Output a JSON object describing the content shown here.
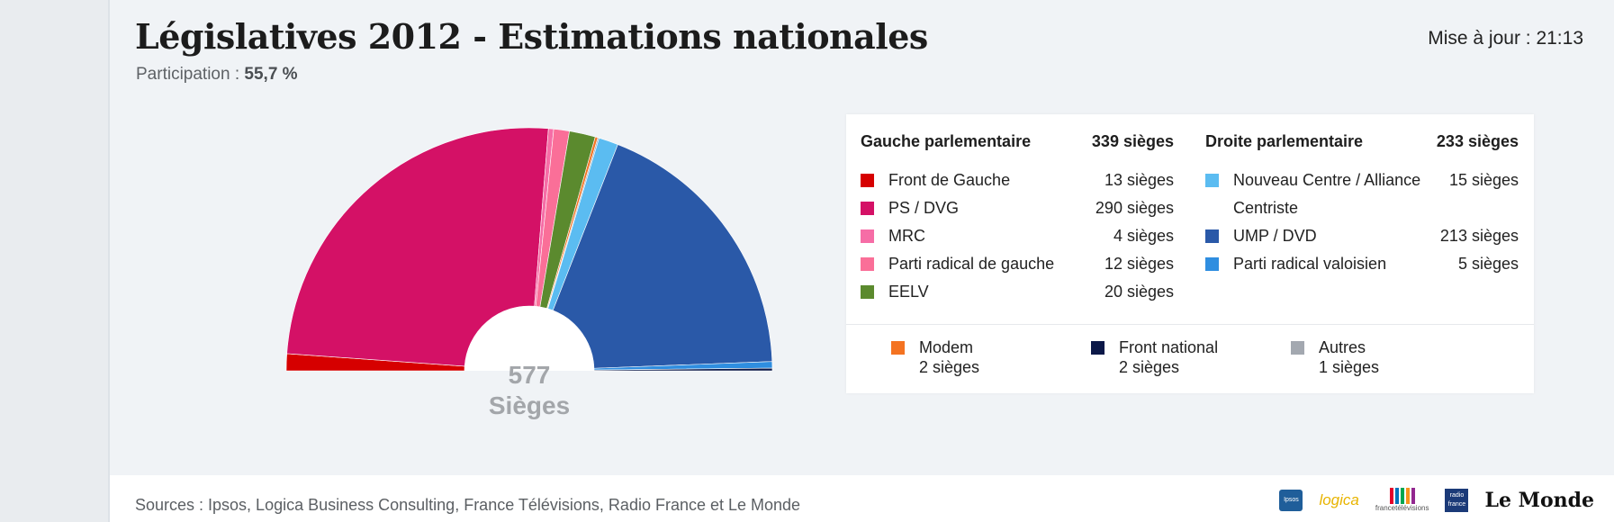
{
  "header": {
    "title": "Législatives 2012 - Estimations nationales",
    "participation_label": "Participation :",
    "participation_value": "55,7 %",
    "update": "Mise à jour : 21:13"
  },
  "center": {
    "count": "577",
    "label": "Sièges"
  },
  "legend": {
    "left": {
      "title": "Gauche parlementaire",
      "total": "339 sièges",
      "items": [
        {
          "name": "Front de Gauche",
          "seats": "13 sièges",
          "color": "#d60000"
        },
        {
          "name": "PS / DVG",
          "seats": "290 sièges",
          "color": "#d41166"
        },
        {
          "name": "MRC",
          "seats": "4 sièges",
          "color": "#f66da6"
        },
        {
          "name": "Parti radical de gauche",
          "seats": "12 sièges",
          "color": "#fa6f98"
        },
        {
          "name": "EELV",
          "seats": "20 sièges",
          "color": "#5b8a2e"
        }
      ]
    },
    "right": {
      "title": "Droite parlementaire",
      "total": "233 sièges",
      "items": [
        {
          "name": "Nouveau Centre / Alliance Centriste",
          "seats": "15 sièges",
          "color": "#5bbcf1"
        },
        {
          "name": "UMP / DVD",
          "seats": "213 sièges",
          "color": "#2a59a8"
        },
        {
          "name": "Parti radical valoisien",
          "seats": "5 sièges",
          "color": "#2f8ee0"
        }
      ]
    },
    "others": [
      {
        "name": "Modem",
        "seats": "2 sièges",
        "color": "#f47321"
      },
      {
        "name": "Front national",
        "seats": "2 sièges",
        "color": "#0b1848"
      },
      {
        "name": "Autres",
        "seats": "1 sièges",
        "color": "#a3a8b0"
      }
    ]
  },
  "chart_data": {
    "type": "pie",
    "variant": "semicircle-hemicycle",
    "total": 577,
    "slices": [
      {
        "name": "Front de Gauche",
        "value": 13,
        "color": "#d60000"
      },
      {
        "name": "PS / DVG",
        "value": 290,
        "color": "#d41166"
      },
      {
        "name": "MRC",
        "value": 4,
        "color": "#f66da6"
      },
      {
        "name": "Parti radical de gauche",
        "value": 12,
        "color": "#fa6f98"
      },
      {
        "name": "EELV",
        "value": 20,
        "color": "#5b8a2e"
      },
      {
        "name": "Modem",
        "value": 2,
        "color": "#f47321"
      },
      {
        "name": "Autres",
        "value": 1,
        "color": "#a3a8b0"
      },
      {
        "name": "Nouveau Centre / Alliance Centriste",
        "value": 15,
        "color": "#5bbcf1"
      },
      {
        "name": "UMP / DVD",
        "value": 213,
        "color": "#2a59a8"
      },
      {
        "name": "Parti radical valoisien",
        "value": 5,
        "color": "#2f8ee0"
      },
      {
        "name": "Front national",
        "value": 2,
        "color": "#0b1848"
      }
    ]
  },
  "footer": {
    "sources": "Sources : Ipsos, Logica Business Consulting, France Télévisions, Radio France et Le Monde",
    "logos": {
      "ipsos": "Ipsos",
      "logica": "logica",
      "francetv": "francetélévisions",
      "radiofrance": "radio france",
      "lemonde": "Le Monde"
    }
  }
}
